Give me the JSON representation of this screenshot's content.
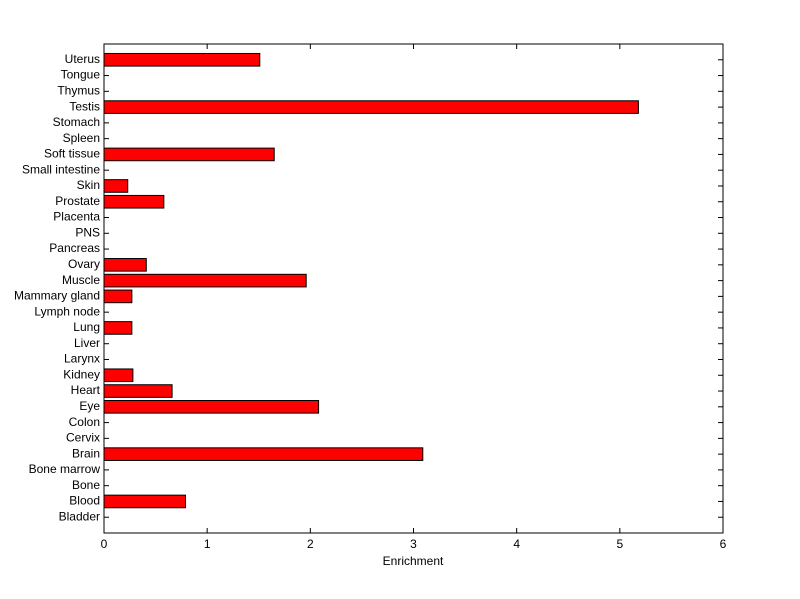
{
  "chart_data": {
    "type": "barh",
    "x_label": "Enrichment",
    "categories": [
      "Bladder",
      "Blood",
      "Bone",
      "Bone marrow",
      "Brain",
      "Cervix",
      "Colon",
      "Eye",
      "Heart",
      "Kidney",
      "Larynx",
      "Liver",
      "Lung",
      "Lymph node",
      "Mammary gland",
      "Muscle",
      "Ovary",
      "Pancreas",
      "PNS",
      "Placenta",
      "Prostate",
      "Skin",
      "Small intestine",
      "Soft tissue",
      "Spleen",
      "Stomach",
      "Testis",
      "Thymus",
      "Tongue",
      "Uterus"
    ],
    "values": [
      0,
      0.79,
      0,
      0,
      3.09,
      0,
      0,
      2.08,
      0.66,
      0.28,
      0,
      0,
      0.27,
      0,
      0.27,
      1.96,
      0.41,
      0,
      0,
      0,
      0.58,
      0.23,
      0,
      1.65,
      0,
      0,
      5.18,
      0,
      0,
      1.51
    ],
    "color": "#ff0000",
    "xlim": [
      0,
      6
    ],
    "xticks": [
      0,
      1,
      2,
      3,
      4,
      5,
      6
    ]
  }
}
